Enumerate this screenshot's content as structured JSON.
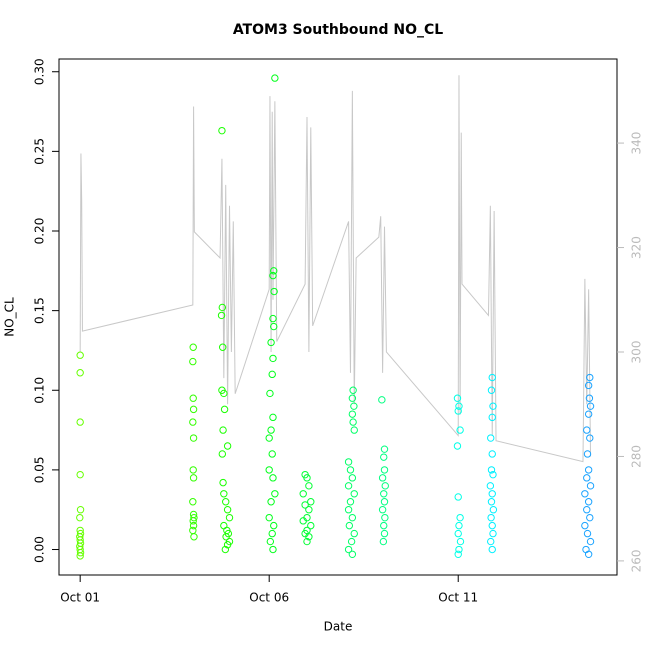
{
  "chart_data": {
    "type": "scatter",
    "title": "ATOM3 Southbound NO_CL",
    "x_label": "Date",
    "y_label": "NO_CL",
    "xlim": [
      0.44,
      15.2
    ],
    "xticks": [
      {
        "value": 1,
        "label": "Oct 01"
      },
      {
        "value": 6,
        "label": "Oct 06"
      },
      {
        "value": 11,
        "label": "Oct 11"
      }
    ],
    "ylim": [
      -0.016,
      0.308
    ],
    "yticks": [
      {
        "value": 0,
        "label": "0.00"
      },
      {
        "value": 0.05,
        "label": "0.05"
      },
      {
        "value": 0.1,
        "label": "0.10"
      },
      {
        "value": 0.15,
        "label": "0.15"
      },
      {
        "value": 0.2,
        "label": "0.20"
      },
      {
        "value": 0.25,
        "label": "0.25"
      },
      {
        "value": 0.3,
        "label": "0.30"
      }
    ],
    "y2lim": [
      257.3,
      356.1
    ],
    "y2ticks": [
      260,
      280,
      300,
      320,
      340
    ],
    "y2_color": "#bbbbbb",
    "series": [
      {
        "color": "#66ff00",
        "x": [
          1.0,
          1.0,
          1.0,
          1.0,
          1.01,
          0.99,
          1.0,
          1.01,
          0.99,
          1.0,
          1.01,
          0.99,
          1.0,
          1.01,
          1.0
        ],
        "values": [
          0.122,
          0.111,
          0.08,
          0.047,
          0.025,
          0.02,
          0.012,
          0.01,
          0.008,
          0.006,
          0.004,
          0.002,
          0,
          -0.002,
          -0.004
        ]
      },
      {
        "color": "#33ff00",
        "x": [
          3.99,
          3.98,
          3.99,
          4.0,
          3.98,
          4.0,
          3.99,
          4.0,
          3.98,
          4.0,
          4.01,
          3.99,
          4.0,
          3.98,
          4.01
        ],
        "values": [
          0.127,
          0.118,
          0.095,
          0.088,
          0.08,
          0.07,
          0.05,
          0.045,
          0.03,
          0.022,
          0.02,
          0.018,
          0.015,
          0.012,
          0.008
        ]
      },
      {
        "color": "#1aff00",
        "x": [
          4.75,
          4.76,
          4.74,
          4.77,
          4.75,
          4.8,
          4.82,
          4.78,
          4.9,
          4.76,
          4.78,
          4.8,
          4.85,
          4.9,
          4.95,
          4.8,
          4.88,
          4.92,
          4.86,
          4.95,
          4.9,
          4.84
        ],
        "values": [
          0.263,
          0.152,
          0.147,
          0.127,
          0.1,
          0.098,
          0.088,
          0.075,
          0.065,
          0.06,
          0.042,
          0.035,
          0.03,
          0.025,
          0.02,
          0.015,
          0.012,
          0.01,
          0.008,
          0.005,
          0.003,
          0.0
        ]
      },
      {
        "color": "#00ff1a",
        "x": [
          6.15,
          6.12,
          6.1,
          6.13,
          6.1,
          6.12,
          6.05,
          6.1,
          6.08,
          6.02,
          6.1,
          6.05,
          6.0,
          6.08,
          6.0,
          6.1,
          6.15,
          6.05,
          6.0,
          6.12,
          6.08,
          6.03,
          6.1
        ],
        "values": [
          0.296,
          0.175,
          0.172,
          0.162,
          0.145,
          0.14,
          0.13,
          0.12,
          0.11,
          0.098,
          0.083,
          0.075,
          0.07,
          0.06,
          0.05,
          0.045,
          0.035,
          0.03,
          0.02,
          0.015,
          0.01,
          0.005,
          0.0
        ]
      },
      {
        "color": "#00ff33",
        "x": [
          6.95,
          7.0,
          7.05,
          6.9,
          7.1,
          6.95,
          7.05,
          7.0,
          6.9,
          7.1,
          7.0,
          6.95,
          7.05,
          7.0
        ],
        "values": [
          0.047,
          0.045,
          0.04,
          0.035,
          0.03,
          0.028,
          0.025,
          0.02,
          0.018,
          0.015,
          0.012,
          0.01,
          0.008,
          0.005
        ]
      },
      {
        "color": "#00ff66",
        "x": [
          8.22,
          8.2,
          8.24,
          8.2,
          8.22,
          8.25,
          8.1,
          8.15,
          8.2,
          8.1,
          8.25,
          8.15,
          8.1,
          8.2,
          8.12,
          8.25,
          8.18,
          8.1,
          8.2
        ],
        "values": [
          0.1,
          0.095,
          0.09,
          0.085,
          0.08,
          0.075,
          0.055,
          0.05,
          0.045,
          0.04,
          0.035,
          0.03,
          0.025,
          0.02,
          0.015,
          0.01,
          0.005,
          0.0,
          -0.003
        ]
      },
      {
        "color": "#00ff80",
        "x": [
          8.98,
          9.05,
          9.03,
          9.05,
          9.0,
          9.07,
          9.03,
          9.05,
          9.0,
          9.06,
          9.03,
          9.05,
          9.02
        ],
        "values": [
          0.094,
          0.063,
          0.058,
          0.05,
          0.045,
          0.04,
          0.035,
          0.03,
          0.025,
          0.02,
          0.015,
          0.01,
          0.005
        ]
      },
      {
        "color": "#00ffe6",
        "x": [
          10.98,
          11.02,
          11.0,
          11.05,
          10.98,
          11.0,
          11.05,
          11.02,
          11.0,
          11.06,
          11.02,
          11.0
        ],
        "values": [
          0.095,
          0.09,
          0.087,
          0.075,
          0.065,
          0.033,
          0.02,
          0.015,
          0.01,
          0.005,
          0.0,
          -0.003
        ]
      },
      {
        "color": "#00f0ff",
        "x": [
          11.9,
          11.88,
          11.92,
          11.9,
          11.86,
          11.9,
          11.88,
          11.92,
          11.85,
          11.9,
          11.88,
          11.93,
          11.87,
          11.9,
          11.92,
          11.86,
          11.9
        ],
        "values": [
          0.108,
          0.1,
          0.09,
          0.083,
          0.07,
          0.06,
          0.05,
          0.047,
          0.04,
          0.035,
          0.03,
          0.025,
          0.02,
          0.015,
          0.01,
          0.005,
          0.0
        ]
      },
      {
        "color": "#1aa3ff",
        "x": [
          14.48,
          14.45,
          14.47,
          14.5,
          14.45,
          14.4,
          14.48,
          14.42,
          14.45,
          14.4,
          14.5,
          14.35,
          14.45,
          14.4,
          14.48,
          14.35,
          14.42,
          14.5,
          14.38,
          14.45
        ],
        "values": [
          0.108,
          0.103,
          0.095,
          0.09,
          0.085,
          0.075,
          0.07,
          0.06,
          0.05,
          0.045,
          0.04,
          0.035,
          0.03,
          0.025,
          0.02,
          0.015,
          0.01,
          0.005,
          0.0,
          -0.003
        ]
      },
      {
        "type": "line",
        "axis": "y2",
        "color": "#c8c8c8",
        "x": [
          1.0,
          1.02,
          1.04,
          1.06,
          3.98,
          4.0,
          4.02,
          4.7,
          4.75,
          4.8,
          4.85,
          4.9,
          4.95,
          5.0,
          5.05,
          5.1,
          6.0,
          6.02,
          6.05,
          6.08,
          6.1,
          6.15,
          6.2,
          6.95,
          7.0,
          7.05,
          7.1,
          7.15,
          8.1,
          8.15,
          8.2,
          8.25,
          8.3,
          8.9,
          8.95,
          9.0,
          9.05,
          9.1,
          11.0,
          11.02,
          11.05,
          11.08,
          11.1,
          11.8,
          11.85,
          11.9,
          11.95,
          12.0,
          14.3,
          14.35,
          14.4,
          14.45,
          14.5
        ],
        "values": [
          300,
          338,
          329,
          304,
          309,
          347,
          323,
          318,
          337,
          295,
          332,
          290,
          328,
          300,
          325,
          292,
          312,
          349,
          300,
          346,
          310,
          348,
          302,
          313,
          345,
          300,
          343,
          305,
          325,
          296,
          350,
          290,
          318,
          322,
          326,
          296,
          324,
          300,
          284,
          353,
          288,
          342,
          313,
          307,
          328,
          284,
          327,
          283,
          279,
          314,
          290,
          312,
          280
        ]
      }
    ]
  }
}
